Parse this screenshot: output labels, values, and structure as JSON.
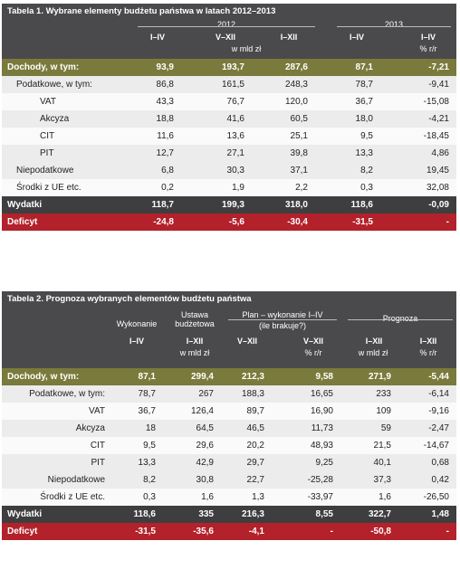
{
  "table1": {
    "title": "Tabela 1. Wybrane elementy budżetu państwa w latach 2012–2013",
    "year1": "2012",
    "year2": "2013",
    "unit": "w mld zł",
    "cols": [
      "I–IV",
      "V–XII",
      "I–XII",
      "I–IV",
      "I–IV"
    ],
    "col_sub": "% r/r",
    "rows": [
      {
        "label": "Dochody, w tym:",
        "v": [
          "93,9",
          "193,7",
          "287,6",
          "87,1",
          "-7,21"
        ]
      },
      {
        "label": "Podatkowe, w tym:",
        "v": [
          "86,8",
          "161,5",
          "248,3",
          "78,7",
          "-9,41"
        ]
      },
      {
        "label": "VAT",
        "v": [
          "43,3",
          "76,7",
          "120,0",
          "36,7",
          "-15,08"
        ]
      },
      {
        "label": "Akcyza",
        "v": [
          "18,8",
          "41,6",
          "60,5",
          "18,0",
          "-4,21"
        ]
      },
      {
        "label": "CIT",
        "v": [
          "11,6",
          "13,6",
          "25,1",
          "9,5",
          "-18,45"
        ]
      },
      {
        "label": "PIT",
        "v": [
          "12,7",
          "27,1",
          "39,8",
          "13,3",
          "4,86"
        ]
      },
      {
        "label": "Niepodatkowe",
        "v": [
          "6,8",
          "30,3",
          "37,1",
          "8,2",
          "19,45"
        ]
      },
      {
        "label": "Środki z UE etc.",
        "v": [
          "0,2",
          "1,9",
          "2,2",
          "0,3",
          "32,08"
        ]
      },
      {
        "label": "Wydatki",
        "v": [
          "118,7",
          "199,3",
          "318,0",
          "118,6",
          "-0,09"
        ]
      },
      {
        "label": "Deficyt",
        "v": [
          "-24,8",
          "-5,6",
          "-30,4",
          "-31,5",
          "-"
        ]
      }
    ]
  },
  "table2": {
    "title": "Tabela 2. Prognoza wybranych elementów budżetu państwa",
    "g1": "Wykonanie",
    "g2a": "Ustawa",
    "g2b": "budżetowa",
    "g3a": "Plan – wykonanie I–IV",
    "g3b": "(ile brakuje?)",
    "g4": "Prognoza",
    "cols": [
      "I–IV",
      "I–XII",
      "V–XII",
      "V–XII",
      "I–XII",
      "I–XII"
    ],
    "sub_unit": "w mld zł",
    "sub_pct": "% r/r",
    "rows": [
      {
        "label": "Dochody, w tym:",
        "v": [
          "87,1",
          "299,4",
          "212,3",
          "9,58",
          "271,9",
          "-5,44"
        ]
      },
      {
        "label": "Podatkowe, w tym:",
        "v": [
          "78,7",
          "267",
          "188,3",
          "16,65",
          "233",
          "-6,14"
        ]
      },
      {
        "label": "VAT",
        "v": [
          "36,7",
          "126,4",
          "89,7",
          "16,90",
          "109",
          "-9,16"
        ]
      },
      {
        "label": "Akcyza",
        "v": [
          "18",
          "64,5",
          "46,5",
          "11,73",
          "59",
          "-2,47"
        ]
      },
      {
        "label": "CIT",
        "v": [
          "9,5",
          "29,6",
          "20,2",
          "48,93",
          "21,5",
          "-14,67"
        ]
      },
      {
        "label": "PIT",
        "v": [
          "13,3",
          "42,9",
          "29,7",
          "9,25",
          "40,1",
          "0,68"
        ]
      },
      {
        "label": "Niepodatkowe",
        "v": [
          "8,2",
          "30,8",
          "22,7",
          "-25,28",
          "37,3",
          "0,42"
        ]
      },
      {
        "label": "Środki z UE etc.",
        "v": [
          "0,3",
          "1,6",
          "1,3",
          "-33,97",
          "1,6",
          "-26,50"
        ]
      },
      {
        "label": "Wydatki",
        "v": [
          "118,6",
          "335",
          "216,3",
          "8,55",
          "322,7",
          "1,48"
        ]
      },
      {
        "label": "Deficyt",
        "v": [
          "-31,5",
          "-35,6",
          "-4,1",
          "-",
          "-50,8",
          "-"
        ]
      }
    ]
  }
}
